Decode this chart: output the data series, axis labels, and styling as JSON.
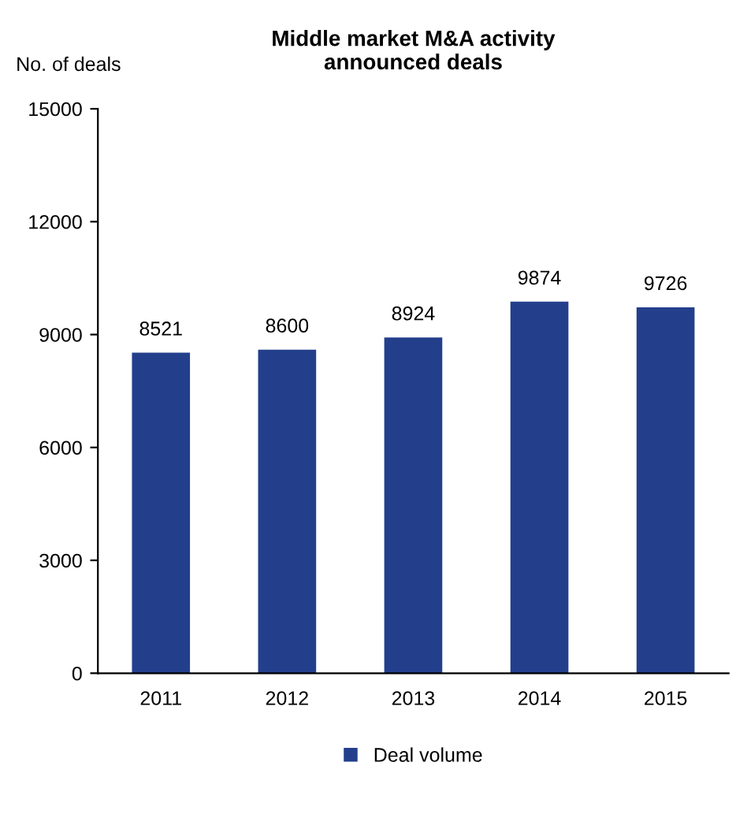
{
  "chart_data": {
    "type": "bar",
    "title": "Middle market M&A activity\nannounced deals",
    "ylabel": "No. of deals",
    "categories": [
      "2011",
      "2012",
      "2013",
      "2014",
      "2015"
    ],
    "series": [
      {
        "name": "Deal volume",
        "color": "#233f8c",
        "values": [
          8521,
          8600,
          8924,
          9874,
          9726
        ]
      }
    ],
    "ylim": [
      0,
      15000
    ],
    "yticks": [
      0,
      3000,
      6000,
      9000,
      12000,
      15000
    ],
    "data_labels": true,
    "grid": false,
    "legend": "bottom"
  }
}
